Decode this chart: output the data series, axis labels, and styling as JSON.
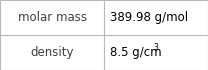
{
  "rows": [
    {
      "label": "molar mass",
      "value": "389.98 g/mol",
      "superscript": null
    },
    {
      "label": "density",
      "value": "8.5 g/cm",
      "superscript": "3"
    }
  ],
  "background_color": "#ffffff",
  "border_color": "#b8b8b8",
  "label_color": "#404040",
  "value_color": "#000000",
  "label_fontsize": 8.5,
  "value_fontsize": 8.5,
  "superscript_fontsize": 5.5,
  "figwidth": 2.08,
  "figheight": 0.7,
  "dpi": 100
}
